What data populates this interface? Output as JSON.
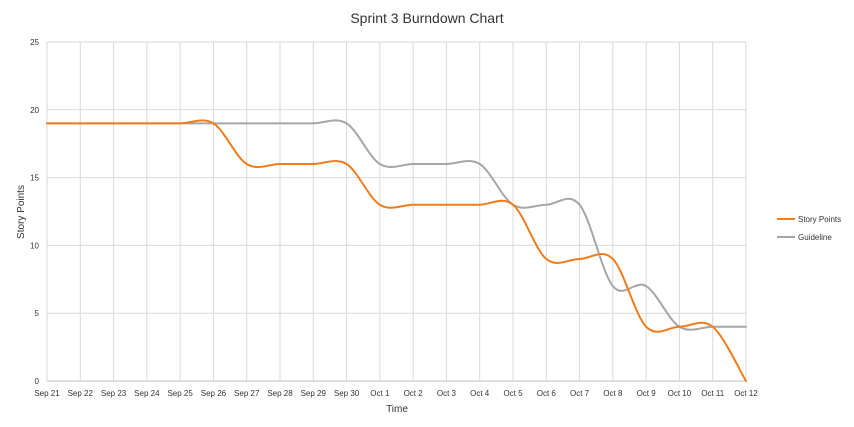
{
  "chart_data": {
    "type": "line",
    "title": "Sprint 3 Burndown Chart",
    "xlabel": "Time",
    "ylabel": "Story Points",
    "ylim": [
      0,
      25
    ],
    "yticks": [
      0,
      5,
      10,
      15,
      20,
      25
    ],
    "grid": true,
    "legend_position": "right",
    "categories": [
      "Sep 21",
      "Sep 22",
      "Sep 23",
      "Sep 24",
      "Sep 25",
      "Sep 26",
      "Sep 27",
      "Sep 28",
      "Sep 29",
      "Sep 30",
      "Oct 1",
      "Oct 2",
      "Oct 3",
      "Oct 4",
      "Oct 5",
      "Oct 6",
      "Oct 7",
      "Oct 8",
      "Oct 9",
      "Oct 10",
      "Oct 11",
      "Oct 12"
    ],
    "series": [
      {
        "name": "Story Points",
        "color": "#f07d1c",
        "values": [
          19,
          19,
          19,
          19,
          19,
          19,
          16,
          16,
          16,
          16,
          13,
          13,
          13,
          13,
          13,
          9,
          9,
          9,
          4,
          4,
          4,
          0
        ]
      },
      {
        "name": "Guideline",
        "color": "#a6a6a6",
        "values": [
          19,
          19,
          19,
          19,
          19,
          19,
          19,
          19,
          19,
          19,
          16,
          16,
          16,
          16,
          13,
          13,
          13,
          7,
          7,
          4,
          4,
          4
        ]
      }
    ]
  }
}
